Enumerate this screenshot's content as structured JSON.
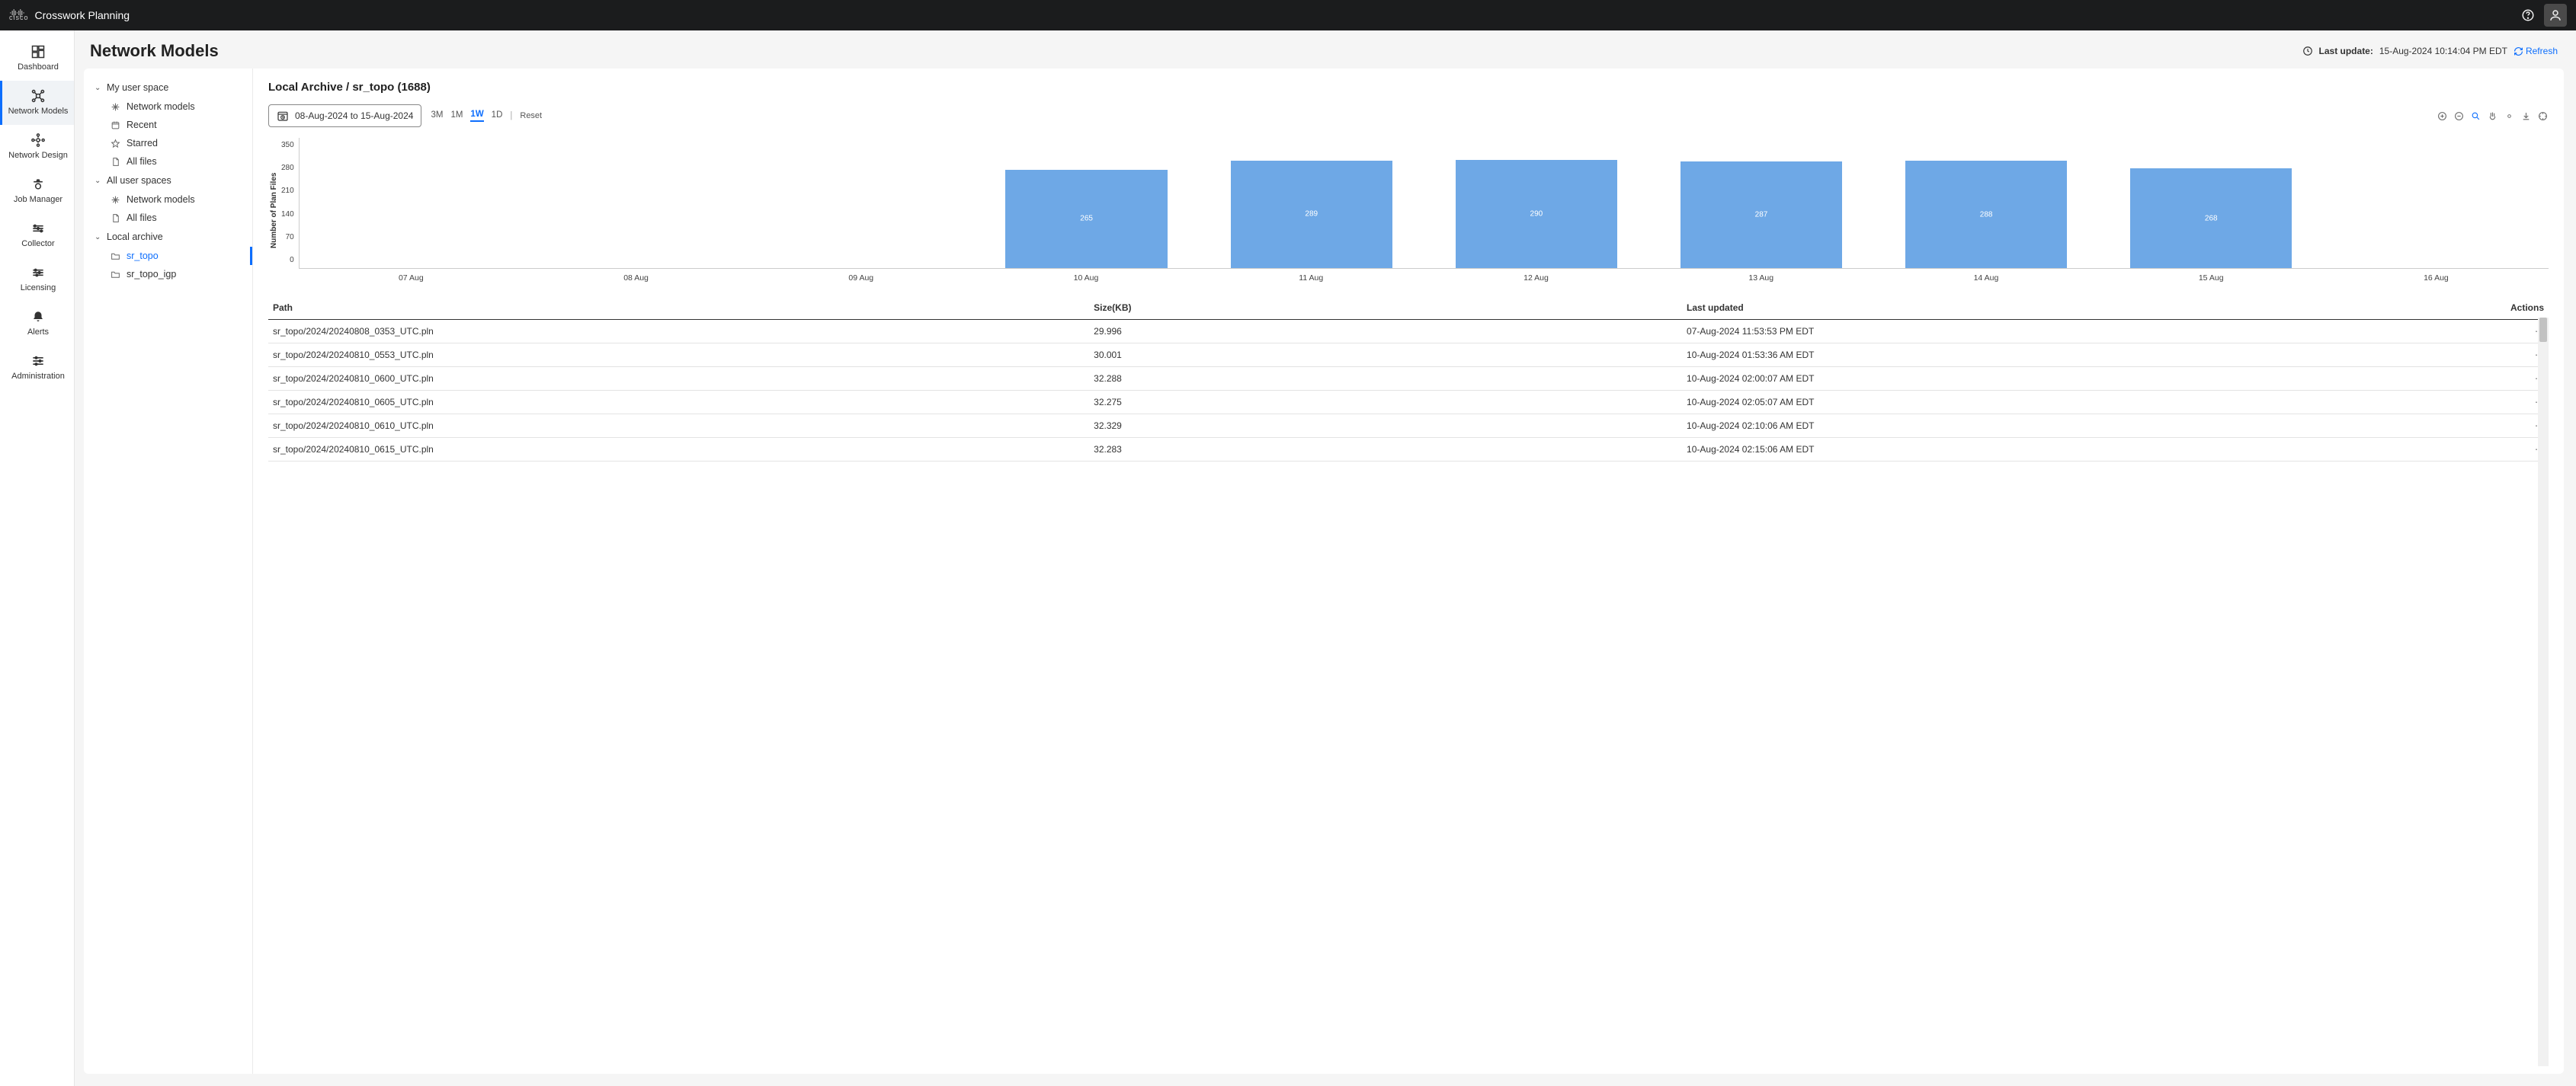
{
  "header": {
    "brand_small": "cisco",
    "app_title": "Crosswork Planning"
  },
  "rail": {
    "items": [
      {
        "key": "dashboard",
        "label": "Dashboard"
      },
      {
        "key": "network-models",
        "label": "Network Models"
      },
      {
        "key": "network-design",
        "label": "Network Design"
      },
      {
        "key": "job-manager",
        "label": "Job Manager"
      },
      {
        "key": "collector",
        "label": "Collector"
      },
      {
        "key": "licensing",
        "label": "Licensing"
      },
      {
        "key": "alerts",
        "label": "Alerts"
      },
      {
        "key": "administration",
        "label": "Administration"
      }
    ],
    "active": "network-models"
  },
  "page": {
    "title": "Network Models",
    "last_update_label": "Last update:",
    "last_update_value": "15-Aug-2024 10:14:04 PM EDT",
    "refresh_label": "Refresh"
  },
  "tree": {
    "groups": [
      {
        "label": "My user space",
        "items": [
          {
            "icon": "snow",
            "label": "Network models"
          },
          {
            "icon": "recent",
            "label": "Recent"
          },
          {
            "icon": "star",
            "label": "Starred"
          },
          {
            "icon": "files",
            "label": "All files"
          }
        ]
      },
      {
        "label": "All user spaces",
        "items": [
          {
            "icon": "snow",
            "label": "Network models"
          },
          {
            "icon": "files",
            "label": "All files"
          }
        ]
      },
      {
        "label": "Local archive",
        "items": [
          {
            "icon": "folder",
            "label": "sr_topo",
            "selected": true
          },
          {
            "icon": "folder",
            "label": "sr_topo_igp"
          }
        ]
      }
    ]
  },
  "detail": {
    "breadcrumb": "Local Archive / sr_topo (1688)",
    "date_range": "08-Aug-2024 to 15-Aug-2024",
    "range_tabs": [
      "3M",
      "1M",
      "1W",
      "1D"
    ],
    "range_active": "1W",
    "reset_label": "Reset"
  },
  "chart": {
    "type": "bar",
    "y_axis_label": "Number of Plan Files",
    "y_ticks": [
      350,
      280,
      210,
      140,
      70,
      0
    ],
    "y_max": 350,
    "categories": [
      "07 Aug",
      "08 Aug",
      "09 Aug",
      "10 Aug",
      "11 Aug",
      "12 Aug",
      "13 Aug",
      "14 Aug",
      "15 Aug",
      "16 Aug"
    ],
    "values": [
      0,
      0,
      0,
      265,
      289,
      290,
      287,
      288,
      268,
      0
    ],
    "bar_color": "#6ea8e6",
    "grid_color": "#cccccc",
    "label_color": "#ffffff",
    "axis_font_size": 10
  },
  "table": {
    "columns": [
      "Path",
      "Size(KB)",
      "Last updated",
      "Actions"
    ],
    "rows": [
      {
        "path": "sr_topo/2024/20240808_0353_UTC.pln",
        "size": "29.996",
        "updated": "07-Aug-2024 11:53:53 PM EDT"
      },
      {
        "path": "sr_topo/2024/20240810_0553_UTC.pln",
        "size": "30.001",
        "updated": "10-Aug-2024 01:53:36 AM EDT"
      },
      {
        "path": "sr_topo/2024/20240810_0600_UTC.pln",
        "size": "32.288",
        "updated": "10-Aug-2024 02:00:07 AM EDT"
      },
      {
        "path": "sr_topo/2024/20240810_0605_UTC.pln",
        "size": "32.275",
        "updated": "10-Aug-2024 02:05:07 AM EDT"
      },
      {
        "path": "sr_topo/2024/20240810_0610_UTC.pln",
        "size": "32.329",
        "updated": "10-Aug-2024 02:10:06 AM EDT"
      },
      {
        "path": "sr_topo/2024/20240810_0615_UTC.pln",
        "size": "32.283",
        "updated": "10-Aug-2024 02:15:06 AM EDT"
      }
    ]
  }
}
